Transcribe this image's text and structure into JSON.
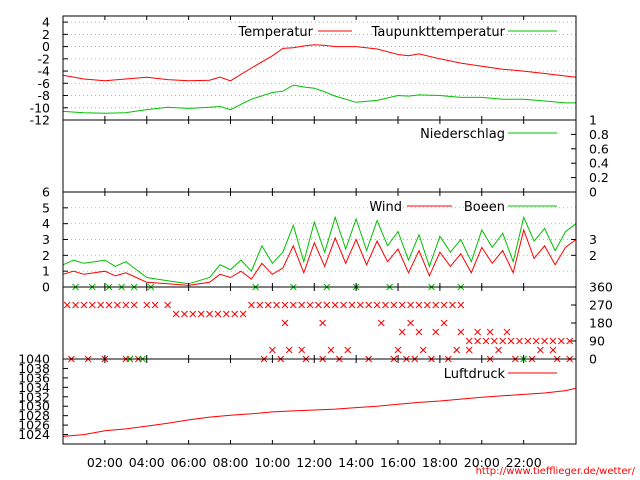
{
  "source_url": "http://www.tiefflieger.de/wetter/",
  "colors": {
    "red": "#ff0000",
    "green": "#00c000",
    "grid": "#9a9a9a",
    "frame": "#000000"
  },
  "x_axis": {
    "range_hours": [
      0,
      24.5
    ],
    "ticks": [
      2,
      4,
      6,
      8,
      10,
      12,
      14,
      16,
      18,
      20,
      22
    ],
    "tick_labels": [
      "02:00",
      "04:00",
      "06:00",
      "08:00",
      "10:00",
      "12:00",
      "14:00",
      "16:00",
      "18:00",
      "20:00",
      "22:00"
    ]
  },
  "chart_data": [
    {
      "type": "line",
      "ylim": [
        -12,
        5
      ],
      "yticks": [
        -12,
        -10,
        -8,
        -6,
        -4,
        -2,
        0,
        2,
        4
      ],
      "ytick_labels": [
        "-12",
        "-10",
        "-8",
        "-6",
        "-4",
        "-2",
        "0",
        "2",
        "4"
      ],
      "axis_side": "left",
      "grid": true,
      "legend_position": "top-right",
      "series": [
        {
          "name": "Temperatur",
          "color": "red",
          "x": [
            0,
            1,
            2,
            3,
            4,
            5,
            6,
            7,
            7.5,
            8,
            9,
            10,
            10.5,
            11,
            11.5,
            12,
            12.5,
            13,
            14,
            15,
            16,
            16.5,
            17,
            18,
            19,
            20,
            21,
            22,
            23,
            24,
            24.5
          ],
          "y": [
            -4.7,
            -5.3,
            -5.6,
            -5.3,
            -5.0,
            -5.4,
            -5.6,
            -5.5,
            -5.0,
            -5.6,
            -3.5,
            -1.5,
            -0.3,
            -0.2,
            0.1,
            0.3,
            0.2,
            0.0,
            0.0,
            -0.4,
            -1.3,
            -1.5,
            -1.2,
            -2.0,
            -2.7,
            -3.2,
            -3.7,
            -4.0,
            -4.4,
            -4.8,
            -5.0
          ]
        },
        {
          "name": "Taupunkttemperatur",
          "color": "green",
          "x": [
            0,
            1,
            2,
            3,
            4,
            5,
            6,
            7,
            7.5,
            8,
            9,
            10,
            10.5,
            11,
            11.5,
            12,
            12.5,
            13,
            14,
            15,
            16,
            16.5,
            17,
            18,
            19,
            20,
            21,
            22,
            23,
            24,
            24.5
          ],
          "y": [
            -10.6,
            -10.8,
            -10.9,
            -10.8,
            -10.3,
            -9.9,
            -10.1,
            -9.9,
            -9.8,
            -10.3,
            -8.6,
            -7.5,
            -7.3,
            -6.3,
            -6.6,
            -6.8,
            -7.4,
            -8.1,
            -9.1,
            -8.8,
            -8.0,
            -8.1,
            -7.9,
            -8.0,
            -8.3,
            -8.3,
            -8.6,
            -8.6,
            -8.9,
            -9.2,
            -9.2
          ]
        }
      ]
    },
    {
      "type": "line",
      "ylim": [
        0,
        1
      ],
      "yticks": [
        0,
        0.2,
        0.4,
        0.6,
        0.8,
        1
      ],
      "ytick_labels": [
        "0",
        "0.2",
        "0.4",
        "0.6",
        "0.8",
        "1"
      ],
      "axis_side": "right",
      "grid": false,
      "legend_position": "top-right",
      "series": [
        {
          "name": "Niederschlag",
          "color": "green",
          "x": [
            0,
            24.5
          ],
          "y": [
            0,
            0
          ]
        }
      ]
    },
    {
      "type": "line",
      "ylim": [
        0,
        6
      ],
      "yticks": [
        0,
        1,
        2,
        3,
        4,
        5,
        6
      ],
      "ytick_labels": [
        "0",
        "1",
        "2",
        "3",
        "4",
        "5",
        "6"
      ],
      "right_ticks": [
        2,
        3
      ],
      "right_tick_labels": [
        "2",
        "3"
      ],
      "axis_side": "left",
      "grid": true,
      "legend_position": "top-right",
      "series": [
        {
          "name": "Wind",
          "color": "red",
          "x": [
            0,
            0.5,
            1,
            1.5,
            2,
            2.5,
            3,
            3.5,
            4,
            5,
            6,
            7,
            7.5,
            8,
            8.5,
            9,
            9.5,
            10,
            10.5,
            11,
            11.5,
            12,
            12.5,
            13,
            13.5,
            14,
            14.5,
            15,
            15.5,
            16,
            16.5,
            17,
            17.5,
            18,
            18.5,
            19,
            19.5,
            20,
            20.5,
            21,
            21.5,
            22,
            22.5,
            23,
            23.5,
            24,
            24.5
          ],
          "y": [
            0.8,
            1.0,
            0.8,
            0.9,
            1.0,
            0.7,
            0.9,
            0.6,
            0.3,
            0.2,
            0.1,
            0.3,
            0.8,
            0.6,
            1.0,
            0.5,
            1.5,
            0.8,
            1.2,
            2.6,
            0.9,
            2.8,
            1.3,
            3.1,
            1.5,
            3.0,
            1.4,
            2.9,
            1.6,
            2.4,
            0.9,
            2.3,
            0.7,
            2.2,
            1.3,
            2.1,
            0.9,
            2.5,
            1.5,
            2.3,
            0.9,
            3.6,
            1.8,
            2.6,
            1.4,
            2.5,
            3.0
          ]
        },
        {
          "name": "Boeen",
          "color": "green",
          "x": [
            0,
            0.5,
            1,
            1.5,
            2,
            2.5,
            3,
            3.5,
            4,
            5,
            6,
            7,
            7.5,
            8,
            8.5,
            9,
            9.5,
            10,
            10.5,
            11,
            11.5,
            12,
            12.5,
            13,
            13.5,
            14,
            14.5,
            15,
            15.5,
            16,
            16.5,
            17,
            17.5,
            18,
            18.5,
            19,
            19.5,
            20,
            20.5,
            21,
            21.5,
            22,
            22.5,
            23,
            23.5,
            24,
            24.5
          ],
          "y": [
            1.4,
            1.7,
            1.5,
            1.6,
            1.7,
            1.3,
            1.6,
            1.1,
            0.6,
            0.4,
            0.2,
            0.6,
            1.4,
            1.1,
            1.7,
            1.0,
            2.6,
            1.5,
            2.2,
            3.9,
            1.6,
            4.1,
            2.2,
            4.4,
            2.4,
            4.3,
            2.3,
            4.2,
            2.6,
            3.5,
            1.7,
            3.3,
            1.3,
            3.2,
            2.2,
            3.0,
            1.6,
            3.6,
            2.5,
            3.4,
            1.6,
            4.4,
            2.9,
            3.7,
            2.3,
            3.5,
            4.0
          ]
        }
      ]
    },
    {
      "type": "scatter",
      "ylim": [
        0,
        360
      ],
      "yticks": [
        0,
        90,
        180,
        270,
        360
      ],
      "ytick_labels": [
        "0",
        "90",
        "180",
        "270",
        "360"
      ],
      "axis_side": "right",
      "grid": false,
      "series": [
        {
          "name": "",
          "color": "red",
          "x": [
            0.2,
            0.6,
            1.0,
            1.4,
            1.8,
            2.2,
            2.6,
            3.0,
            3.4,
            4.0,
            4.4,
            5.0,
            5.4,
            5.8,
            6.2,
            6.6,
            7.0,
            7.4,
            7.8,
            8.2,
            8.6,
            9.0,
            9.4,
            9.8,
            10.2,
            10.6,
            11.0,
            11.4,
            11.8,
            12.2,
            12.6,
            13.0,
            13.4,
            13.8,
            14.2,
            14.6,
            15.0,
            15.4,
            15.8,
            16.2,
            16.6,
            17.0,
            17.4,
            17.8,
            18.2,
            18.6,
            19.0,
            19.4,
            19.8,
            20.2,
            20.6,
            21.0,
            21.4,
            21.8,
            22.2,
            22.6,
            23.0,
            23.4,
            23.8,
            24.2,
            0.4,
            1.2,
            2.0,
            3.0,
            3.2,
            3.6,
            9.6,
            10.4,
            11.6,
            12.4,
            13.2,
            14.6,
            15.8,
            16.4,
            16.8,
            17.6,
            18.4,
            20.4,
            21.6,
            22.4,
            23.6,
            24.2,
            10.0,
            10.8,
            11.4,
            12.8,
            13.6,
            16.0,
            17.2,
            18.8,
            19.4,
            20.8,
            22.8,
            23.4,
            16.2,
            17.0,
            17.8,
            19.0,
            19.8,
            20.4,
            21.2,
            10.6,
            12.4,
            15.2,
            16.6,
            18.2
          ],
          "y": [
            270,
            270,
            270,
            270,
            270,
            270,
            270,
            270,
            270,
            270,
            270,
            270,
            225,
            225,
            225,
            225,
            225,
            225,
            225,
            225,
            225,
            270,
            270,
            270,
            270,
            270,
            270,
            270,
            270,
            270,
            270,
            270,
            270,
            270,
            270,
            270,
            270,
            270,
            270,
            270,
            270,
            270,
            270,
            270,
            270,
            270,
            270,
            90,
            90,
            90,
            90,
            90,
            90,
            90,
            90,
            90,
            90,
            90,
            90,
            90,
            0,
            0,
            0,
            0,
            0,
            0,
            0,
            0,
            0,
            0,
            0,
            0,
            0,
            0,
            0,
            0,
            0,
            0,
            0,
            0,
            0,
            0,
            45,
            45,
            45,
            45,
            45,
            45,
            45,
            45,
            45,
            45,
            45,
            45,
            135,
            135,
            135,
            135,
            135,
            135,
            135,
            180,
            180,
            180,
            180,
            180
          ]
        },
        {
          "name": "",
          "color": "green",
          "x": [
            0.6,
            1.4,
            2.2,
            2.8,
            3.4,
            4.2,
            9.2,
            11.0,
            12.6,
            14.0,
            15.6,
            17.6,
            19.0,
            3.2,
            3.8,
            22.0
          ],
          "y": [
            360,
            360,
            360,
            360,
            360,
            360,
            360,
            360,
            360,
            360,
            360,
            360,
            360,
            0,
            0,
            0
          ]
        }
      ]
    },
    {
      "type": "line",
      "ylim": [
        1022,
        1040
      ],
      "yticks": [
        1024,
        1026,
        1028,
        1030,
        1032,
        1034,
        1036,
        1038,
        1040
      ],
      "ytick_labels": [
        "1024",
        "1026",
        "1028",
        "1030",
        "1032",
        "1034",
        "1036",
        "1038",
        "1040"
      ],
      "axis_side": "left",
      "grid": false,
      "legend_position": "top-right",
      "series": [
        {
          "name": "Luftdruck",
          "color": "red",
          "x": [
            0,
            1,
            2,
            3,
            4,
            5,
            6,
            7,
            8,
            9,
            10,
            11,
            12,
            13,
            14,
            15,
            16,
            17,
            18,
            19,
            20,
            21,
            22,
            23,
            24,
            24.5
          ],
          "y": [
            1023.6,
            1024.0,
            1024.8,
            1025.2,
            1025.8,
            1026.4,
            1027.1,
            1027.7,
            1028.1,
            1028.4,
            1028.8,
            1029.0,
            1029.2,
            1029.4,
            1029.7,
            1030.0,
            1030.4,
            1030.8,
            1031.1,
            1031.5,
            1031.9,
            1032.2,
            1032.5,
            1032.8,
            1033.3,
            1033.8
          ]
        }
      ]
    }
  ]
}
